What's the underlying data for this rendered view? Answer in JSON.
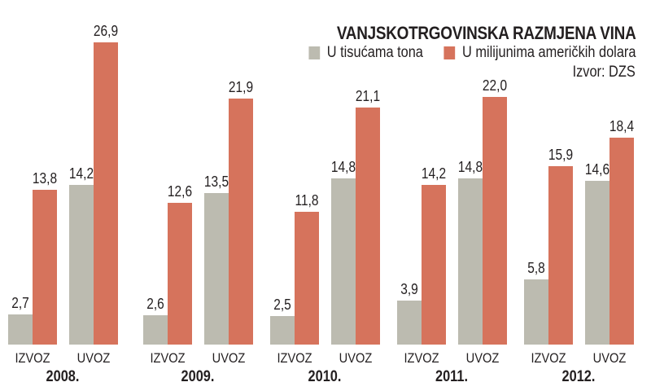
{
  "header": {
    "title": "VANJSKOTRGOVINSKA RAZMJENA VINA",
    "legend": [
      {
        "label": "U tisućama tona",
        "color": "#bcbbb0"
      },
      {
        "label": "U milijunima američkih dolara",
        "color": "#d6735c"
      }
    ],
    "source": "Izvor: DZS"
  },
  "chart_data": {
    "type": "bar",
    "title": "VANJSKOTRGOVINSKA RAZMJENA VINA",
    "source": "Izvor: DZS",
    "xlabel": "",
    "ylabel": "",
    "grid": false,
    "legend_position": "top-right",
    "groups": [
      "2008.",
      "2009.",
      "2010.",
      "2011.",
      "2012."
    ],
    "subcategories": [
      "IZVOZ",
      "UVOZ"
    ],
    "categories": [
      "2008. IZVOZ",
      "2008. UVOZ",
      "2009. IZVOZ",
      "2009. UVOZ",
      "2010. IZVOZ",
      "2010. UVOZ",
      "2011. IZVOZ",
      "2011. UVOZ",
      "2012. IZVOZ",
      "2012. UVOZ"
    ],
    "series": [
      {
        "name": "U tisućama tona",
        "color": "#bcbbb0",
        "values": [
          2.7,
          14.2,
          2.6,
          13.5,
          2.5,
          14.8,
          3.9,
          14.8,
          5.8,
          14.6
        ],
        "labels": [
          "2,7",
          "14,2",
          "2,6",
          "13,5",
          "2,5",
          "14,8",
          "3,9",
          "14,8",
          "5,8",
          "14,6"
        ]
      },
      {
        "name": "U milijunima američkih dolara",
        "color": "#d6735c",
        "values": [
          13.8,
          26.9,
          12.6,
          21.9,
          11.8,
          21.1,
          14.2,
          22.0,
          15.9,
          18.4
        ],
        "labels": [
          "13,8",
          "26,9",
          "12,6",
          "21,9",
          "11,8",
          "21,1",
          "14,2",
          "22,0",
          "15,9",
          "18,4"
        ]
      }
    ],
    "ylim": [
      0,
      27
    ]
  }
}
